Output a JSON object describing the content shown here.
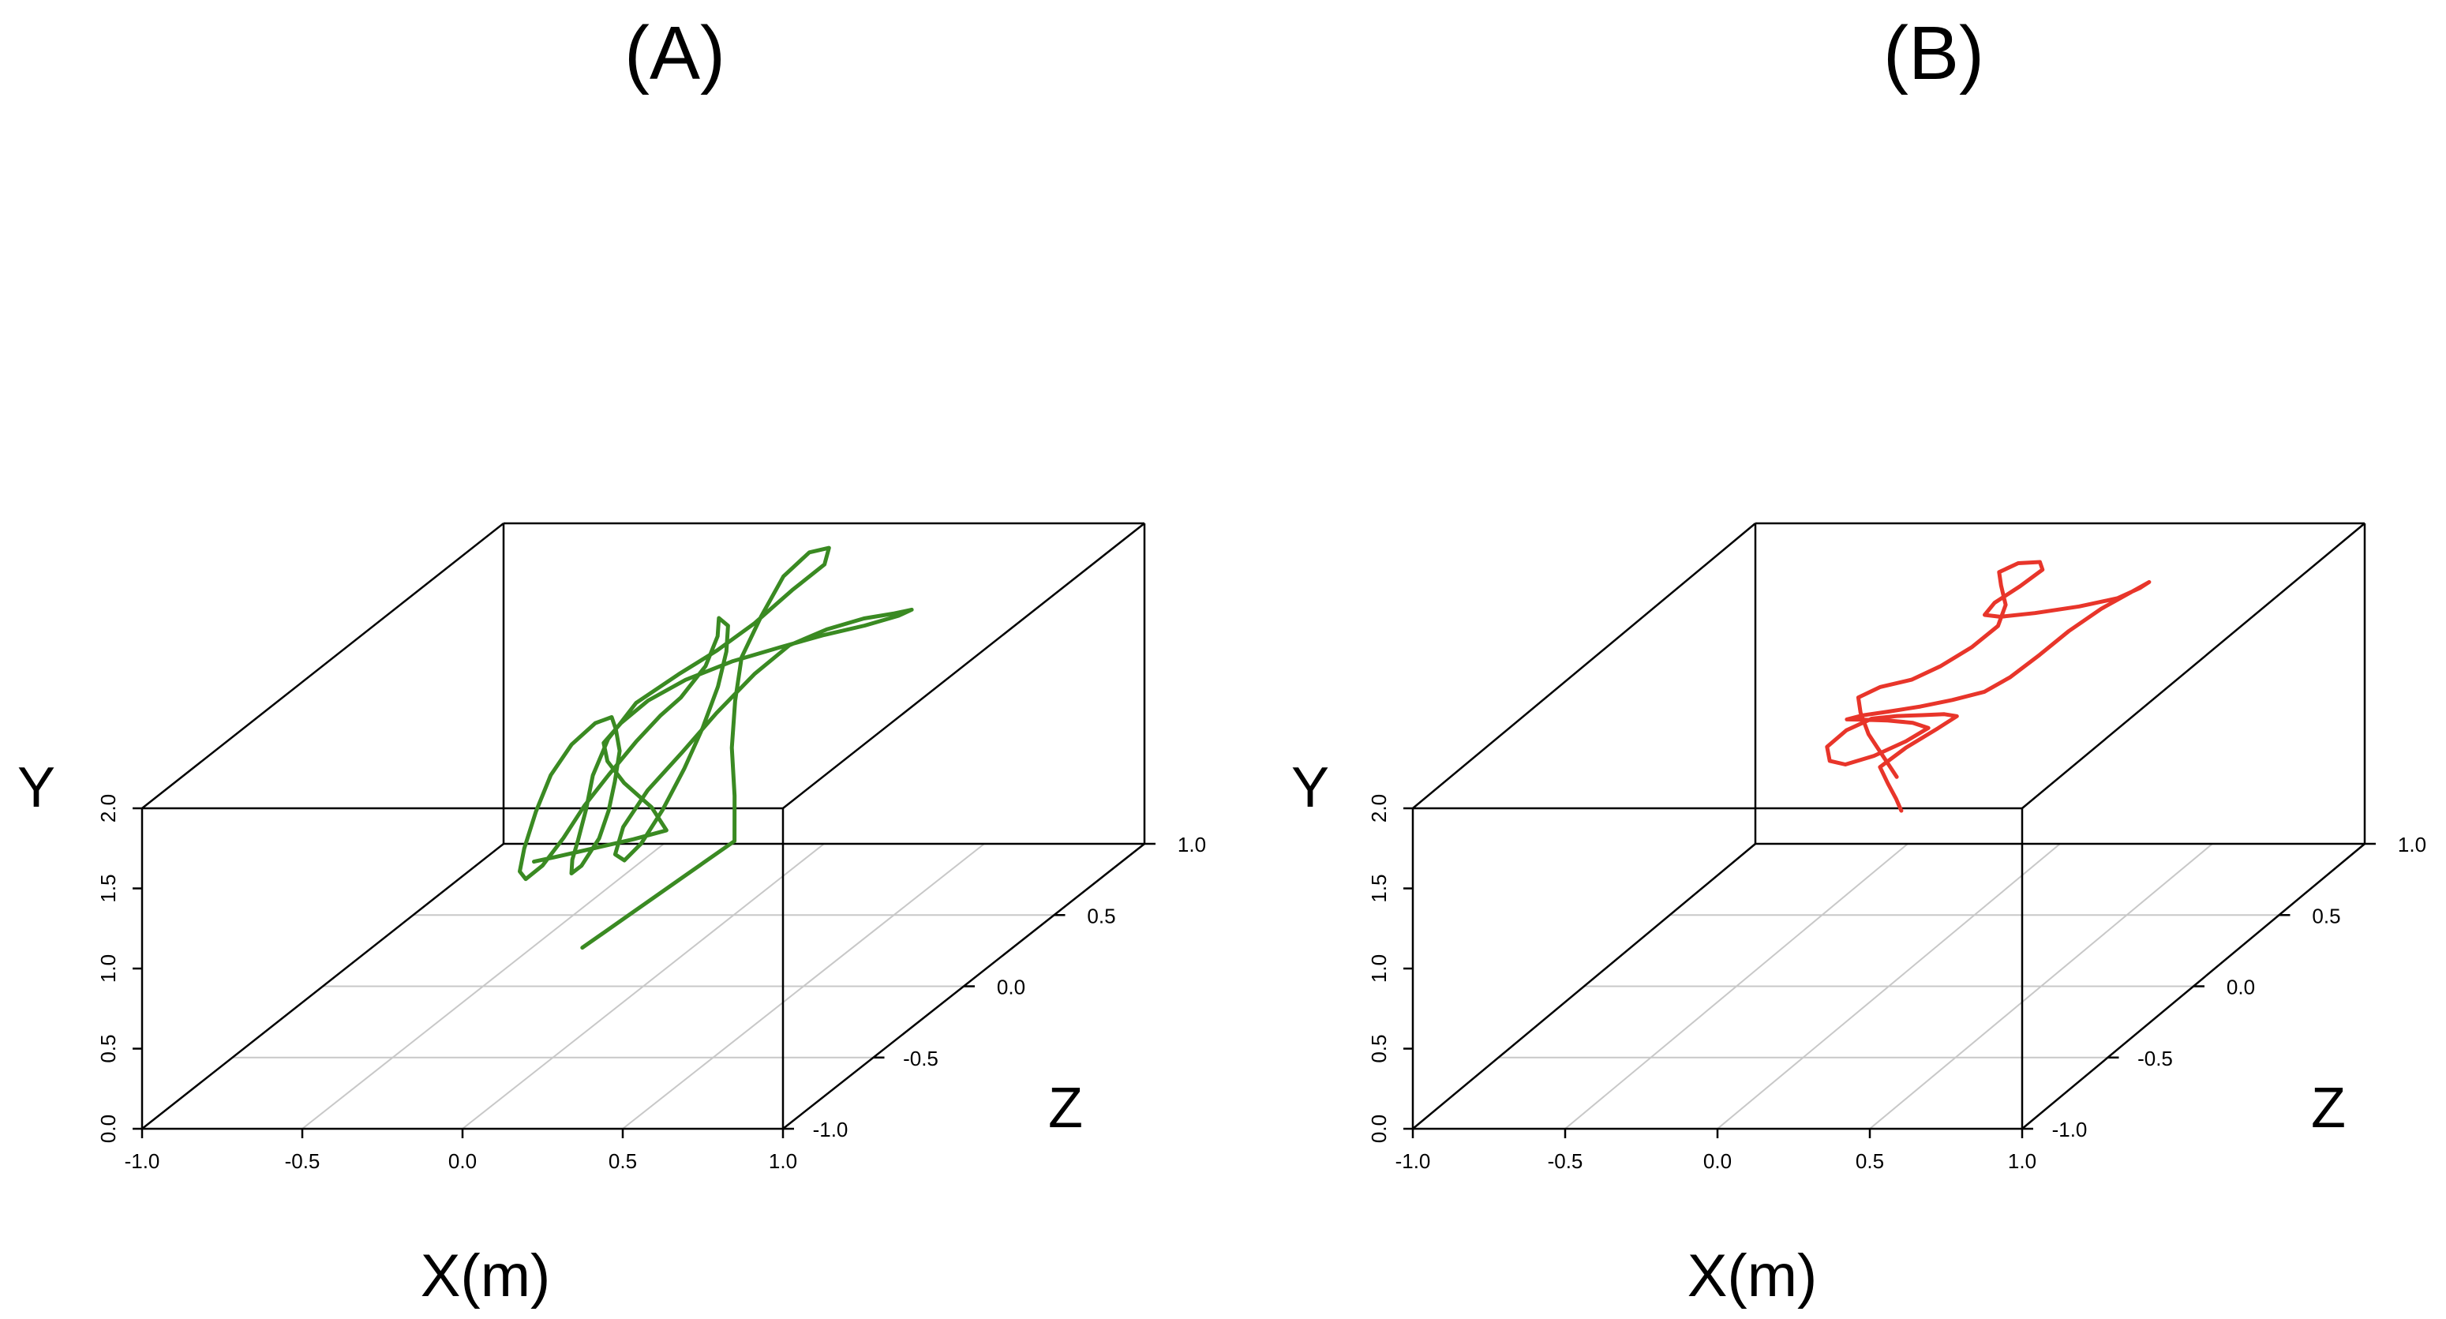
{
  "chart_data": [
    {
      "type": "line3d",
      "panel_label": "(A)",
      "xlabel": "X(m)",
      "ylabel": "Y",
      "zlabel": "Z",
      "xlim": [
        -1.0,
        1.0
      ],
      "ylim": [
        0.0,
        2.0
      ],
      "zlim": [
        -1.0,
        1.0
      ],
      "x_ticks": [
        "-1.0",
        "-0.5",
        "0.0",
        "0.5",
        "1.0"
      ],
      "y_ticks": [
        "0.0",
        "0.5",
        "1.0",
        "1.5",
        "2.0"
      ],
      "z_ticks": [
        "-1.0",
        "-0.5",
        "0.0",
        "0.5",
        "1.0"
      ],
      "grid": "floor",
      "color": "#3a8a22",
      "trajectory": [
        [
          0.12,
          0.73,
          -0.55
        ],
        [
          0.22,
          0.86,
          -0.45
        ],
        [
          0.32,
          0.99,
          -0.34
        ],
        [
          0.42,
          1.12,
          -0.24
        ],
        [
          0.33,
          1.26,
          -0.08
        ],
        [
          0.22,
          1.4,
          0.1
        ],
        [
          0.14,
          1.55,
          0.26
        ],
        [
          0.07,
          1.68,
          0.42
        ],
        [
          0.04,
          1.79,
          0.58
        ],
        [
          0.02,
          1.9,
          0.74
        ],
        [
          0.05,
          1.97,
          0.83
        ],
        [
          0.1,
          1.98,
          0.85
        ],
        [
          0.12,
          1.93,
          0.79
        ],
        [
          0.07,
          1.85,
          0.7
        ],
        [
          0.02,
          1.75,
          0.58
        ],
        [
          -0.04,
          1.67,
          0.48
        ],
        [
          -0.11,
          1.6,
          0.39
        ],
        [
          -0.18,
          1.52,
          0.28
        ],
        [
          -0.2,
          1.4,
          0.16
        ],
        [
          -0.18,
          1.28,
          0.04
        ],
        [
          -0.15,
          1.15,
          -0.05
        ],
        [
          -0.13,
          1.03,
          -0.13
        ],
        [
          -0.12,
          0.95,
          -0.18
        ],
        [
          -0.1,
          0.9,
          -0.22
        ],
        [
          -0.08,
          0.93,
          -0.2
        ],
        [
          -0.07,
          1.03,
          -0.12
        ],
        [
          -0.08,
          1.14,
          -0.05
        ],
        [
          -0.1,
          1.26,
          0.02
        ],
        [
          -0.13,
          1.38,
          0.1
        ],
        [
          -0.17,
          1.47,
          0.15
        ],
        [
          -0.2,
          1.52,
          0.18
        ],
        [
          -0.24,
          1.5,
          0.16
        ],
        [
          -0.28,
          1.42,
          0.1
        ],
        [
          -0.3,
          1.3,
          0.02
        ],
        [
          -0.29,
          1.16,
          -0.08
        ],
        [
          -0.27,
          1.02,
          -0.18
        ],
        [
          -0.25,
          0.93,
          -0.24
        ],
        [
          -0.22,
          0.9,
          -0.26
        ],
        [
          -0.19,
          0.95,
          -0.22
        ],
        [
          -0.17,
          1.05,
          -0.14
        ],
        [
          -0.15,
          1.18,
          -0.06
        ],
        [
          -0.12,
          1.3,
          0.02
        ],
        [
          -0.09,
          1.42,
          0.12
        ],
        [
          -0.06,
          1.51,
          0.2
        ],
        [
          -0.03,
          1.57,
          0.26
        ],
        [
          -0.02,
          1.66,
          0.38
        ],
        [
          -0.05,
          1.74,
          0.5
        ],
        [
          -0.08,
          1.8,
          0.56
        ],
        [
          -0.04,
          1.77,
          0.54
        ],
        [
          0.0,
          1.68,
          0.46
        ],
        [
          0.03,
          1.55,
          0.36
        ],
        [
          0.05,
          1.4,
          0.24
        ],
        [
          0.06,
          1.25,
          0.12
        ],
        [
          0.06,
          1.1,
          0.0
        ],
        [
          0.05,
          0.98,
          -0.1
        ],
        [
          0.02,
          0.91,
          -0.14
        ],
        [
          -0.02,
          0.93,
          -0.12
        ],
        [
          -0.04,
          1.03,
          -0.04
        ],
        [
          -0.02,
          1.17,
          0.06
        ],
        [
          0.02,
          1.3,
          0.18
        ],
        [
          0.06,
          1.44,
          0.3
        ],
        [
          0.1,
          1.56,
          0.44
        ],
        [
          0.14,
          1.63,
          0.56
        ],
        [
          0.2,
          1.64,
          0.66
        ],
        [
          0.26,
          1.62,
          0.76
        ],
        [
          0.31,
          1.58,
          0.84
        ],
        [
          0.33,
          1.55,
          0.9
        ],
        [
          0.3,
          1.53,
          0.88
        ],
        [
          0.24,
          1.54,
          0.8
        ],
        [
          0.17,
          1.57,
          0.7
        ],
        [
          0.1,
          1.6,
          0.58
        ],
        [
          0.02,
          1.62,
          0.46
        ],
        [
          -0.06,
          1.61,
          0.34
        ],
        [
          -0.12,
          1.57,
          0.24
        ],
        [
          -0.16,
          1.5,
          0.16
        ],
        [
          -0.18,
          1.43,
          0.1
        ],
        [
          -0.14,
          1.36,
          0.05
        ],
        [
          -0.06,
          1.27,
          0.0
        ],
        [
          0.06,
          1.17,
          -0.06
        ],
        [
          0.14,
          1.08,
          -0.12
        ],
        [
          0.06,
          1.06,
          -0.16
        ],
        [
          -0.04,
          1.04,
          -0.2
        ],
        [
          -0.14,
          1.02,
          -0.24
        ],
        [
          -0.2,
          1.0,
          -0.25
        ]
      ]
    },
    {
      "type": "line3d",
      "panel_label": "(B)",
      "xlabel": "X(m)",
      "ylabel": "Y",
      "zlabel": "Z",
      "xlim": [
        -1.0,
        1.0
      ],
      "ylim": [
        0.0,
        2.0
      ],
      "zlim": [
        -1.0,
        1.0
      ],
      "x_ticks": [
        "-1.0",
        "-0.5",
        "0.0",
        "0.5",
        "1.0"
      ],
      "y_ticks": [
        "0.0",
        "0.5",
        "1.0",
        "1.5",
        "2.0"
      ],
      "z_ticks": [
        "-1.0",
        "-0.5",
        "0.0",
        "0.5",
        "1.0"
      ],
      "grid": "floor",
      "color": "#e8352a",
      "trajectory": [
        [
          0.06,
          1.36,
          -0.06
        ],
        [
          -0.02,
          1.44,
          0.0
        ],
        [
          -0.1,
          1.52,
          0.06
        ],
        [
          -0.16,
          1.6,
          0.12
        ],
        [
          -0.19,
          1.66,
          0.16
        ],
        [
          -0.14,
          1.69,
          0.2
        ],
        [
          -0.06,
          1.7,
          0.24
        ],
        [
          0.0,
          1.73,
          0.3
        ],
        [
          0.06,
          1.78,
          0.38
        ],
        [
          0.1,
          1.84,
          0.46
        ],
        [
          0.08,
          1.9,
          0.54
        ],
        [
          0.02,
          1.95,
          0.62
        ],
        [
          -0.02,
          1.98,
          0.68
        ],
        [
          0.02,
          2.0,
          0.72
        ],
        [
          0.08,
          1.99,
          0.74
        ],
        [
          0.1,
          1.96,
          0.72
        ],
        [
          0.06,
          1.91,
          0.66
        ],
        [
          0.01,
          1.86,
          0.6
        ],
        [
          0.0,
          1.82,
          0.56
        ],
        [
          0.04,
          1.79,
          0.58
        ],
        [
          0.12,
          1.76,
          0.64
        ],
        [
          0.22,
          1.73,
          0.72
        ],
        [
          0.3,
          1.71,
          0.8
        ],
        [
          0.34,
          1.72,
          0.86
        ],
        [
          0.36,
          1.74,
          0.88
        ],
        [
          0.33,
          1.72,
          0.84
        ],
        [
          0.27,
          1.68,
          0.76
        ],
        [
          0.22,
          1.63,
          0.66
        ],
        [
          0.18,
          1.57,
          0.56
        ],
        [
          0.14,
          1.52,
          0.46
        ],
        [
          0.1,
          1.5,
          0.38
        ],
        [
          0.04,
          1.52,
          0.3
        ],
        [
          -0.02,
          1.55,
          0.22
        ],
        [
          -0.08,
          1.59,
          0.14
        ],
        [
          -0.13,
          1.62,
          0.08
        ],
        [
          -0.16,
          1.63,
          0.04
        ],
        [
          -0.12,
          1.61,
          0.06
        ],
        [
          -0.06,
          1.57,
          0.1
        ],
        [
          0.0,
          1.52,
          0.14
        ],
        [
          0.04,
          1.47,
          0.16
        ],
        [
          0.0,
          1.44,
          0.1
        ],
        [
          -0.06,
          1.42,
          0.02
        ],
        [
          -0.12,
          1.42,
          -0.04
        ],
        [
          -0.16,
          1.46,
          -0.06
        ],
        [
          -0.18,
          1.53,
          -0.04
        ],
        [
          -0.15,
          1.58,
          0.02
        ],
        [
          -0.1,
          1.6,
          0.08
        ],
        [
          -0.04,
          1.58,
          0.12
        ],
        [
          0.02,
          1.55,
          0.16
        ],
        [
          0.07,
          1.52,
          0.2
        ],
        [
          0.1,
          1.49,
          0.22
        ],
        [
          0.06,
          1.45,
          0.18
        ],
        [
          0.0,
          1.4,
          0.1
        ],
        [
          -0.04,
          1.35,
          0.02
        ],
        [
          0.02,
          1.3,
          -0.04
        ],
        [
          0.08,
          1.26,
          -0.1
        ],
        [
          0.12,
          1.22,
          -0.14
        ]
      ]
    }
  ]
}
